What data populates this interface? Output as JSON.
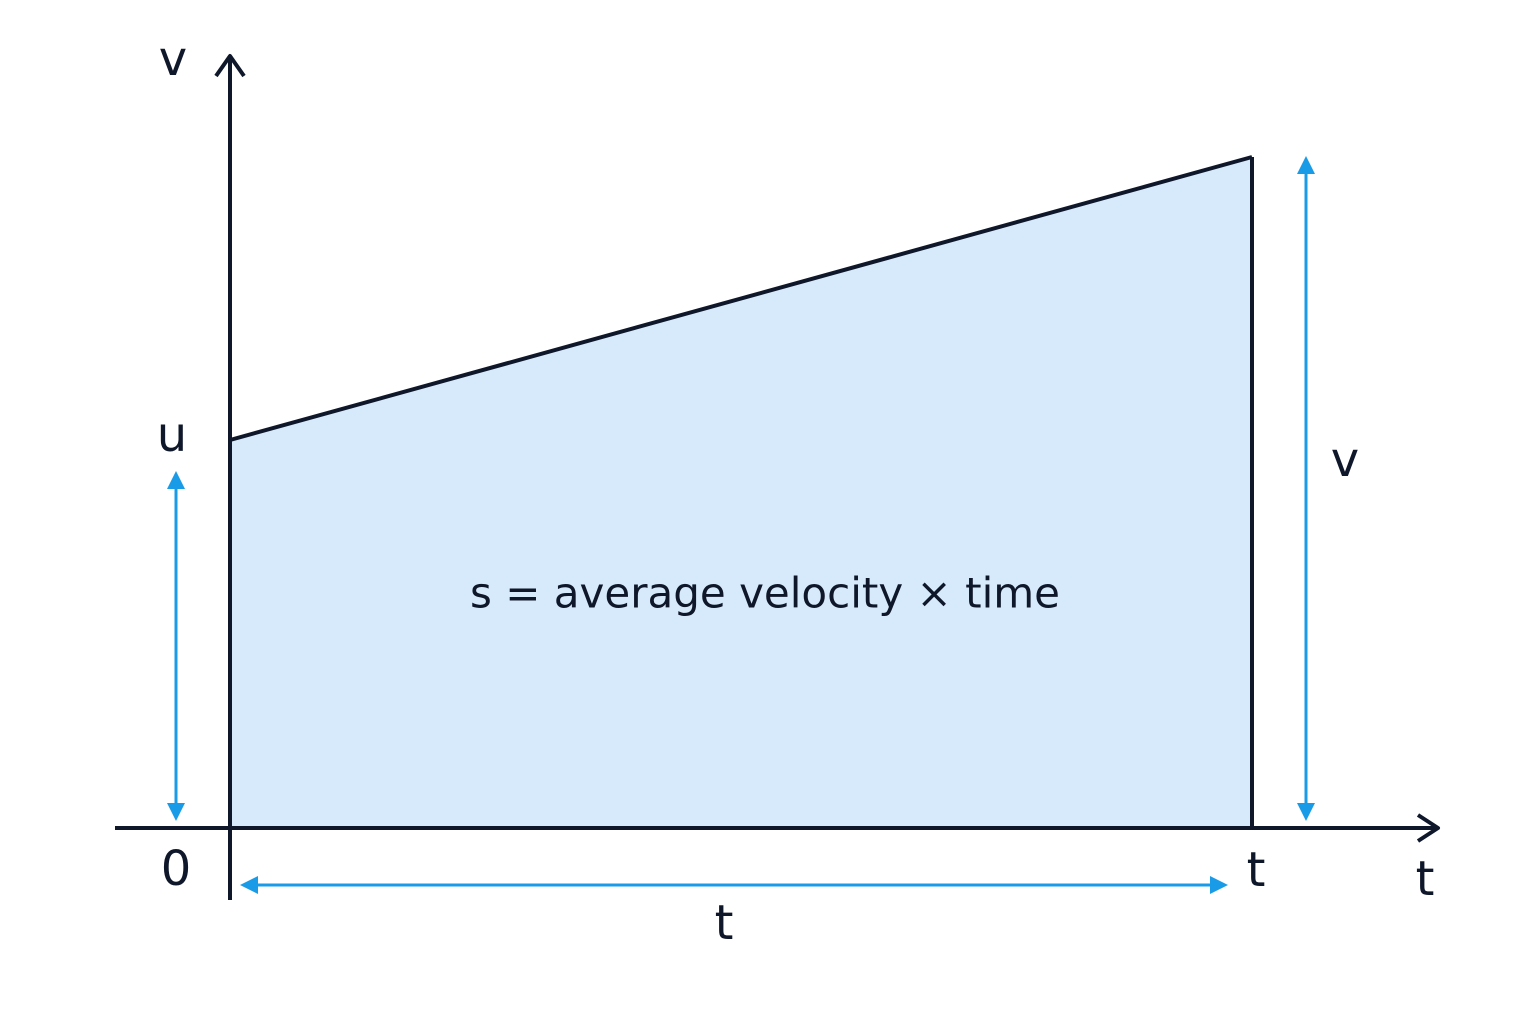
{
  "axes": {
    "y_label": "v",
    "x_label": "t",
    "origin": "0"
  },
  "markers": {
    "initial_velocity": "u",
    "end_time": "t"
  },
  "dimensions": {
    "final_velocity": "v",
    "duration": "t"
  },
  "formula": "s = average velocity × time"
}
